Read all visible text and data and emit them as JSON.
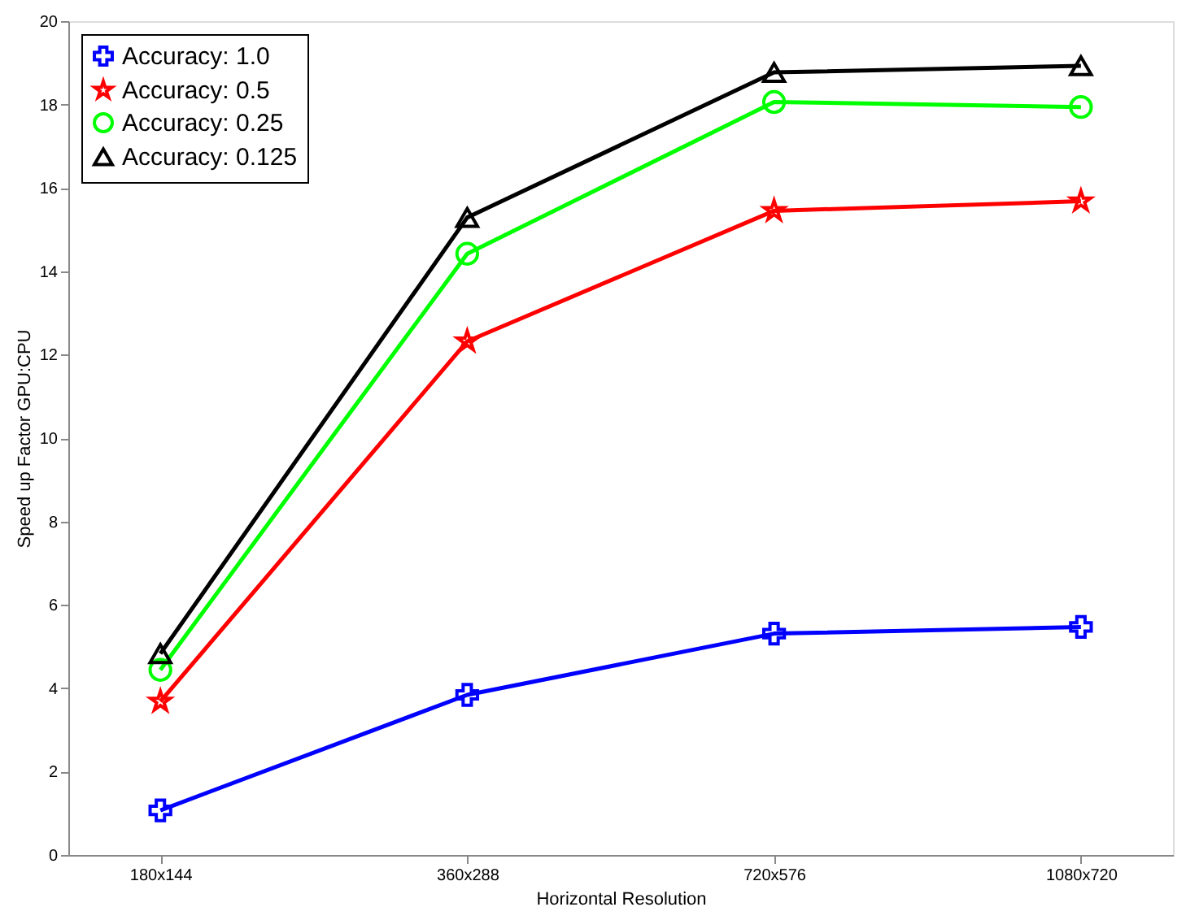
{
  "chart_data": {
    "type": "line",
    "xlabel": "Horizontal Resolution",
    "ylabel": "Speed up Factor GPU:CPU",
    "categories": [
      "180x144",
      "360x288",
      "720x576",
      "1080x720"
    ],
    "ylim": [
      0,
      20
    ],
    "yticks": [
      0,
      2,
      4,
      6,
      8,
      10,
      12,
      14,
      16,
      18,
      20
    ],
    "grid": false,
    "legend": "top left",
    "line_style": "solid",
    "series": [
      {
        "name": "Accuracy: 1.0",
        "color": "#0000ff",
        "marker": "cross",
        "values": [
          1.07,
          3.84,
          5.31,
          5.47
        ]
      },
      {
        "name": "Accuracy: 0.5",
        "color": "#ff0000",
        "marker": "star",
        "values": [
          3.68,
          12.32,
          15.45,
          15.68
        ]
      },
      {
        "name": "Accuracy: 0.25",
        "color": "#00ff00",
        "marker": "circle",
        "values": [
          4.44,
          14.42,
          18.06,
          17.94
        ]
      },
      {
        "name": "Accuracy: 0.125",
        "color": "#000000",
        "marker": "triangle",
        "values": [
          4.83,
          15.29,
          18.77,
          18.93
        ]
      }
    ]
  }
}
